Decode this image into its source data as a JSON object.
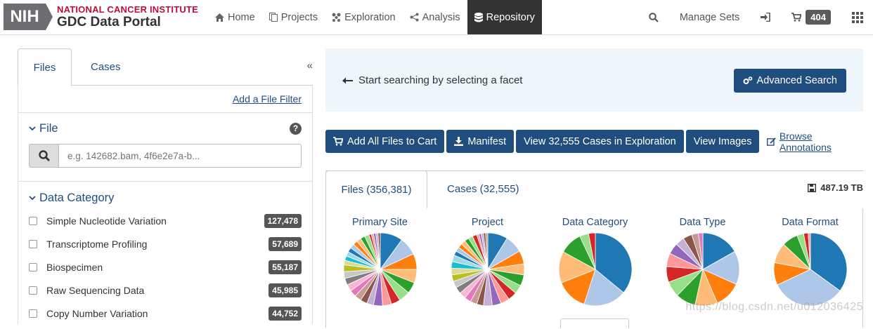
{
  "header": {
    "logo_badge": "NIH",
    "logo_line1": "NATIONAL CANCER INSTITUTE",
    "logo_line2": "GDC Data Portal",
    "nav": [
      {
        "label": "Home",
        "icon": "home-icon"
      },
      {
        "label": "Projects",
        "icon": "copy-icon"
      },
      {
        "label": "Exploration",
        "icon": "cluster-icon"
      },
      {
        "label": "Analysis",
        "icon": "graph-icon"
      },
      {
        "label": "Repository",
        "icon": "database-icon",
        "active": true
      }
    ],
    "manage_sets": "Manage Sets",
    "cart_count": "404"
  },
  "sidebar": {
    "tabs": {
      "files": "Files",
      "cases": "Cases"
    },
    "add_filter": "Add a File Filter",
    "file_facet": {
      "title": "File",
      "placeholder": "e.g. 142682.bam, 4f6e2e7a-b..."
    },
    "data_category": {
      "title": "Data Category",
      "items": [
        {
          "label": "Simple Nucleotide Variation",
          "count": "127,478"
        },
        {
          "label": "Transcriptome Profiling",
          "count": "57,689"
        },
        {
          "label": "Biospecimen",
          "count": "55,187"
        },
        {
          "label": "Raw Sequencing Data",
          "count": "45,985"
        },
        {
          "label": "Copy Number Variation",
          "count": "44,752"
        }
      ]
    }
  },
  "main": {
    "notice": "Start searching by selecting a facet",
    "advanced_search": "Advanced Search",
    "actions": {
      "add_all": "Add All Files to Cart",
      "manifest": "Manifest",
      "view_cases": "View 32,555 Cases in Exploration",
      "view_images": "View Images",
      "browse_annotations": "Browse Annotations"
    },
    "summary": {
      "tab_files": "Files (356,381)",
      "tab_cases": "Cases (32,555)",
      "total_size": "487.19 TB",
      "pies": [
        {
          "title": "Primary Site"
        },
        {
          "title": "Project"
        },
        {
          "title": "Data Category"
        },
        {
          "title": "Data Type"
        },
        {
          "title": "Data Format"
        }
      ]
    }
  },
  "watermark": "https://blog.csdn.net/u012036425",
  "colors": {
    "brand_blue": "#1f4e7e",
    "nih_red": "#bb0e3d",
    "nav_active": "#333333",
    "notice_bg": "#eef6fb"
  },
  "chart_data": [
    {
      "type": "pie",
      "title": "Primary Site",
      "values": [
        10,
        8,
        7,
        6,
        5,
        5,
        4,
        4,
        4,
        3,
        3,
        3,
        3,
        3,
        3,
        3,
        3,
        2,
        2,
        2,
        2,
        2,
        2,
        2,
        2,
        2,
        1,
        1,
        1,
        1,
        1
      ]
    },
    {
      "type": "pie",
      "title": "Project",
      "values": [
        9,
        8,
        6,
        5,
        5,
        4,
        4,
        4,
        4,
        4,
        3,
        3,
        3,
        3,
        3,
        3,
        3,
        3,
        3,
        3,
        2,
        2,
        2,
        2,
        2,
        2,
        2,
        1,
        1,
        1,
        1,
        1
      ]
    },
    {
      "type": "pie",
      "title": "Data Category",
      "values": [
        36,
        19,
        14,
        14,
        10,
        4,
        3
      ]
    },
    {
      "type": "pie",
      "title": "Data Type",
      "values": [
        17,
        15,
        12,
        10,
        9,
        7,
        7,
        6,
        5,
        4,
        4,
        3,
        2
      ]
    },
    {
      "type": "pie",
      "title": "Data Format",
      "values": [
        35,
        33,
        10,
        9,
        7,
        3,
        2,
        1
      ]
    }
  ]
}
